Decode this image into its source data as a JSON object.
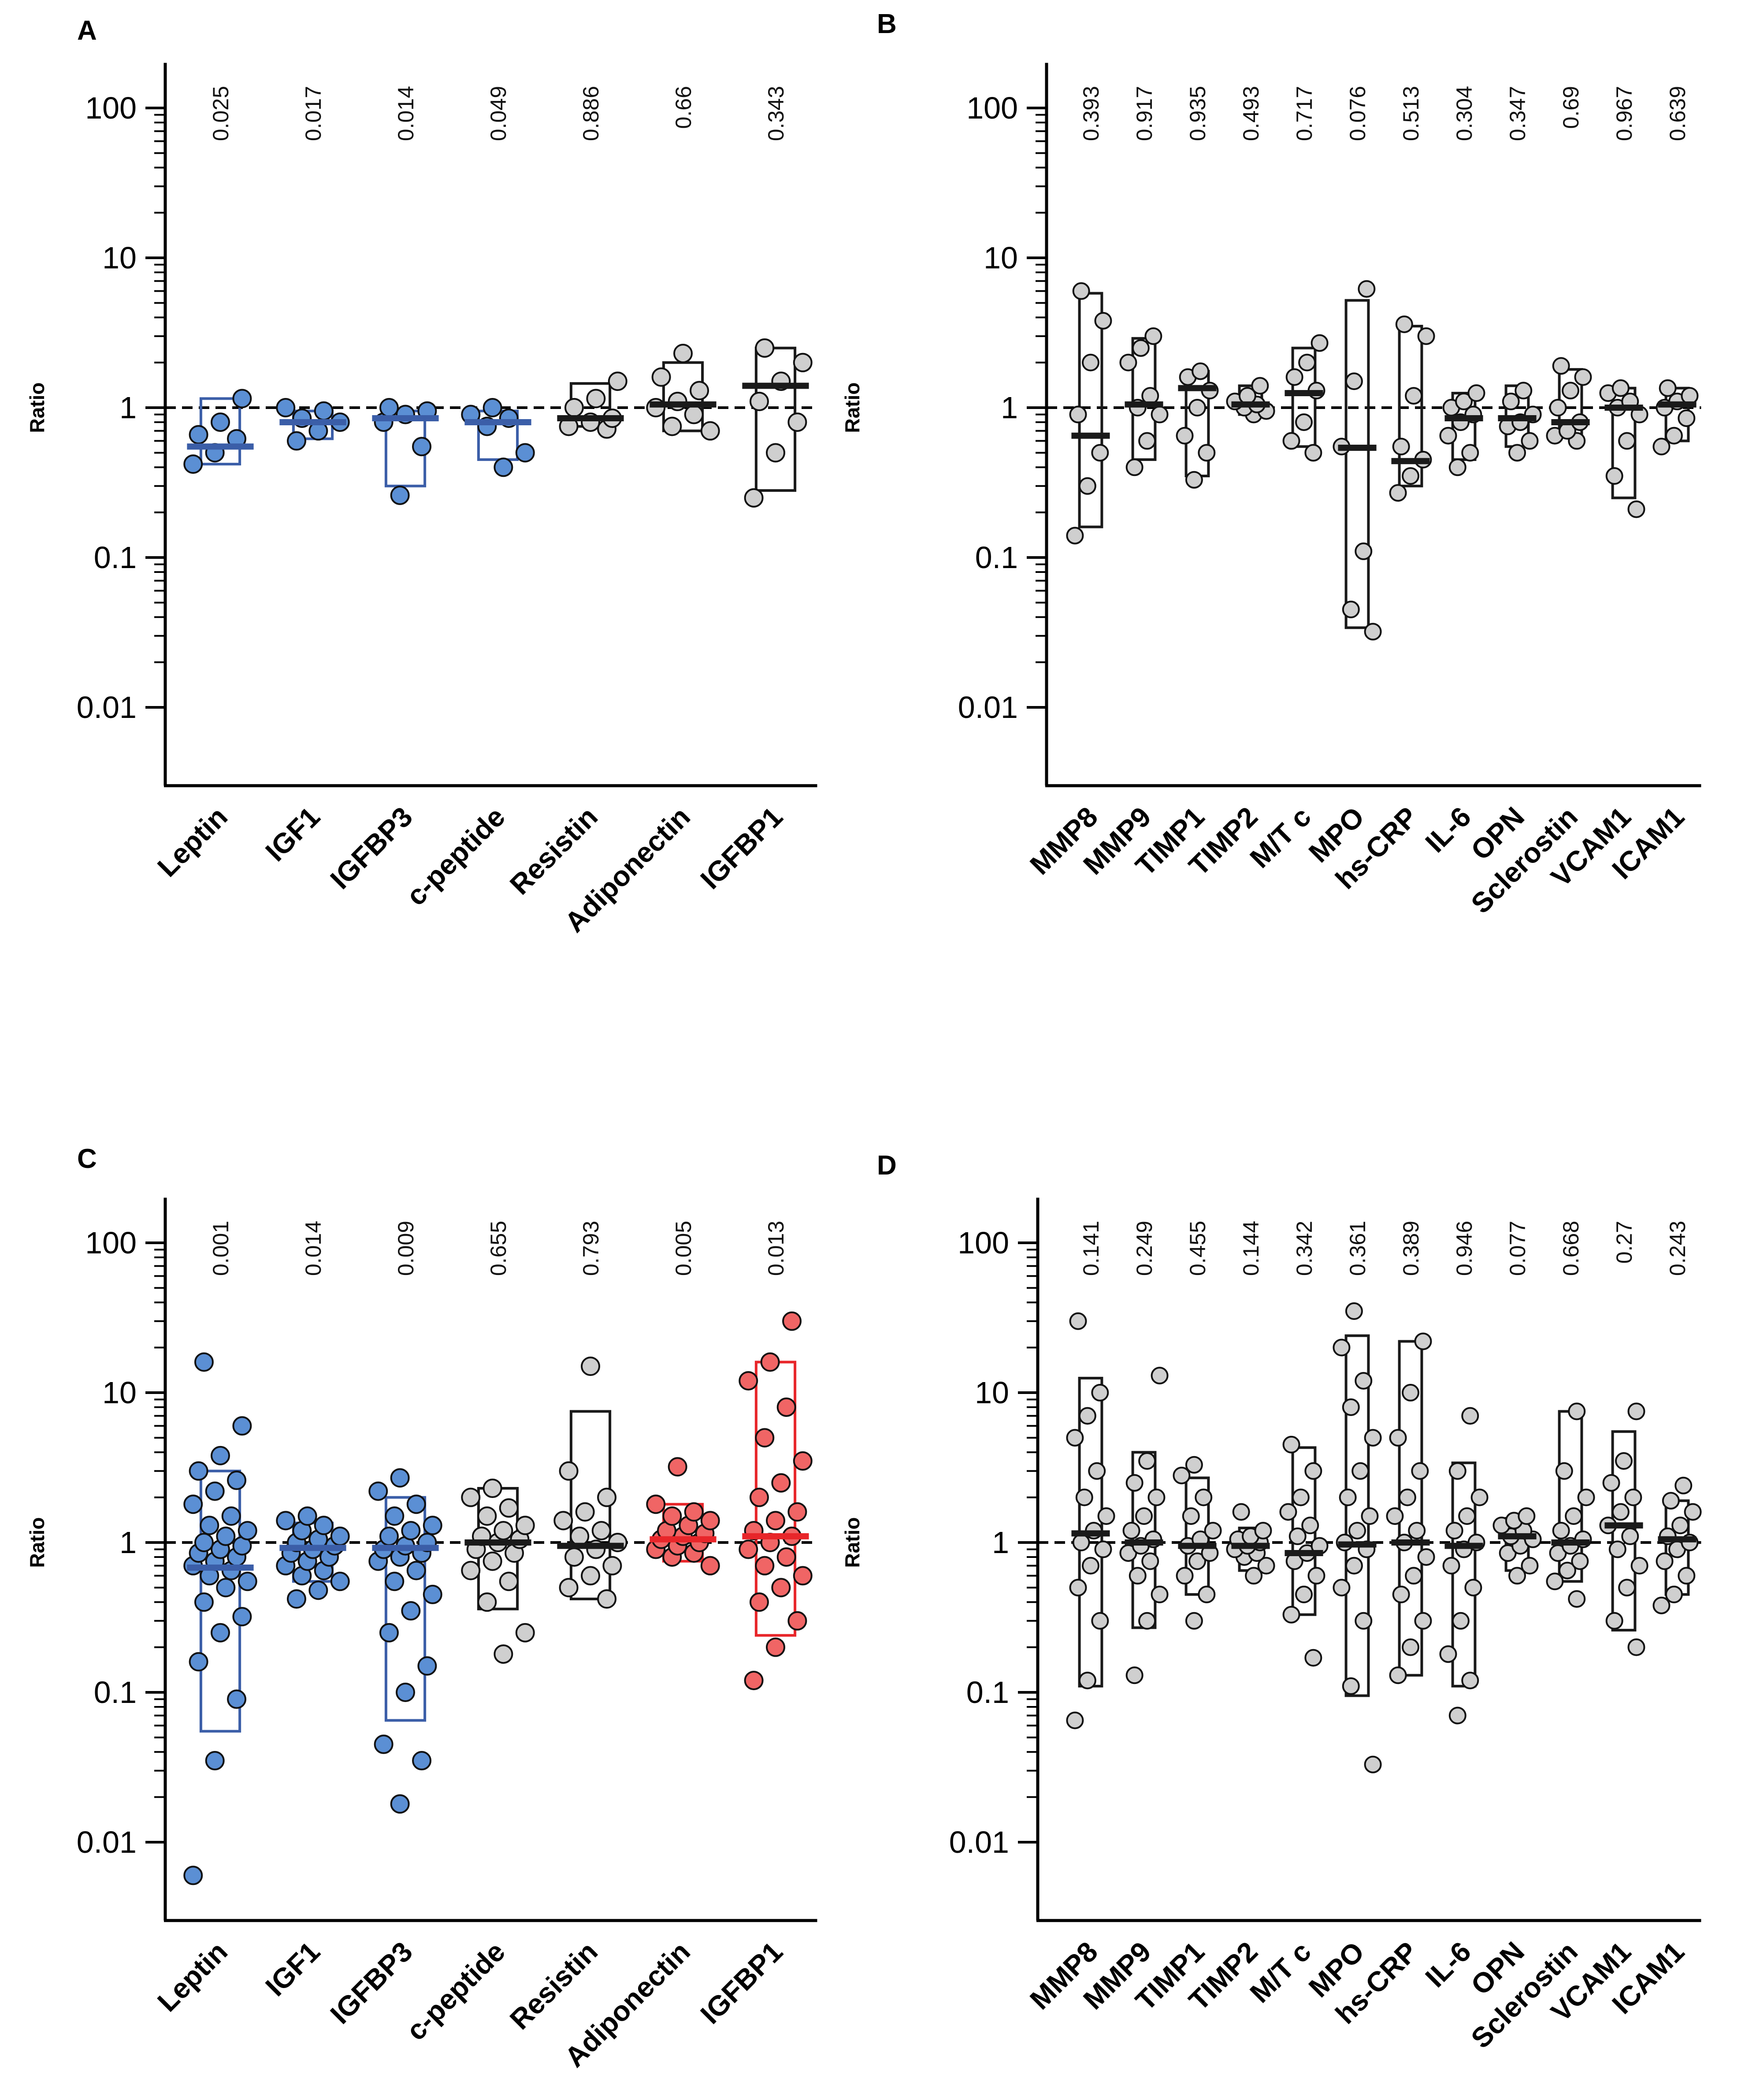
{
  "figure": {
    "reference_line": 1
  },
  "colors": {
    "blue": "#3b5ea8",
    "blue_fill": "#5b8fd4",
    "red": "#e8262a",
    "red_fill": "#f06565",
    "black": "#1a1a1a",
    "grey_fill": "#cfcfcf"
  },
  "chart_data": [
    {
      "panel": "A",
      "type": "scatter",
      "ylabel": "Ratio",
      "yscale": "log",
      "ylim": [
        0.003,
        200
      ],
      "yticks": [
        {
          "v": 100,
          "label": "100"
        },
        {
          "v": 10,
          "label": "10"
        },
        {
          "v": 1,
          "label": "1"
        },
        {
          "v": 0.1,
          "label": "0.1"
        },
        {
          "v": 0.01,
          "label": "0.01"
        }
      ],
      "categories": [
        {
          "name": "Leptin",
          "p": "0.025",
          "color": "blue",
          "box": [
            0.42,
            1.15
          ],
          "median": 0.55,
          "points": [
            0.42,
            0.5,
            0.62,
            0.66,
            0.8,
            1.15
          ]
        },
        {
          "name": "IGF1",
          "p": "0.017",
          "color": "blue",
          "box": [
            0.62,
            0.95
          ],
          "median": 0.8,
          "points": [
            0.6,
            0.7,
            0.8,
            0.85,
            0.95,
            1.0
          ]
        },
        {
          "name": "IGFBP3",
          "p": "0.014",
          "color": "blue",
          "box": [
            0.3,
            0.95
          ],
          "median": 0.85,
          "points": [
            0.26,
            0.55,
            0.8,
            0.9,
            0.95,
            1.0
          ]
        },
        {
          "name": "c-peptide",
          "p": "0.049",
          "color": "blue",
          "box": [
            0.45,
            0.95
          ],
          "median": 0.8,
          "points": [
            0.4,
            0.5,
            0.75,
            0.85,
            0.9,
            1.0
          ]
        },
        {
          "name": "Resistin",
          "p": "0.886",
          "color": "black",
          "box": [
            0.75,
            1.45
          ],
          "median": 0.85,
          "points": [
            0.72,
            0.75,
            0.8,
            0.85,
            1.0,
            1.15,
            1.5
          ]
        },
        {
          "name": "Adiponectin",
          "p": "0.66",
          "color": "black",
          "box": [
            0.7,
            2.0
          ],
          "median": 1.05,
          "points": [
            0.7,
            0.75,
            0.9,
            1.0,
            1.1,
            1.3,
            1.6,
            2.3
          ]
        },
        {
          "name": "IGFBP1",
          "p": "0.343",
          "color": "black",
          "box": [
            0.28,
            2.5
          ],
          "median": 1.4,
          "points": [
            0.25,
            0.5,
            0.8,
            1.1,
            1.5,
            2.0,
            2.5
          ]
        }
      ]
    },
    {
      "panel": "B",
      "type": "scatter",
      "ylabel": "Ratio",
      "yscale": "log",
      "ylim": [
        0.003,
        200
      ],
      "yticks": [
        {
          "v": 100,
          "label": "100"
        },
        {
          "v": 10,
          "label": "10"
        },
        {
          "v": 1,
          "label": "1"
        },
        {
          "v": 0.1,
          "label": "0.1"
        },
        {
          "v": 0.01,
          "label": "0.01"
        }
      ],
      "categories": [
        {
          "name": "MMP8",
          "p": "0.393",
          "color": "black",
          "box": [
            0.16,
            5.8
          ],
          "median": 0.65,
          "points": [
            0.14,
            0.3,
            0.5,
            0.9,
            2.0,
            3.8,
            6.0
          ]
        },
        {
          "name": "MMP9",
          "p": "0.917",
          "color": "black",
          "box": [
            0.45,
            2.9
          ],
          "median": 1.05,
          "points": [
            0.4,
            0.6,
            0.9,
            1.0,
            1.2,
            2.0,
            2.5,
            3.0
          ]
        },
        {
          "name": "TIMP1",
          "p": "0.935",
          "color": "black",
          "box": [
            0.35,
            1.75
          ],
          "median": 1.35,
          "points": [
            0.33,
            0.5,
            0.65,
            1.0,
            1.3,
            1.6,
            1.75
          ]
        },
        {
          "name": "TIMP2",
          "p": "0.493",
          "color": "black",
          "box": [
            0.9,
            1.4
          ],
          "median": 1.05,
          "points": [
            0.9,
            0.95,
            1.0,
            1.05,
            1.1,
            1.2,
            1.4
          ]
        },
        {
          "name": "M/T c",
          "p": "0.717",
          "color": "black",
          "box": [
            0.55,
            2.5
          ],
          "median": 1.25,
          "points": [
            0.5,
            0.6,
            0.8,
            1.3,
            1.6,
            2.0,
            2.7
          ]
        },
        {
          "name": "MPO",
          "p": "0.076",
          "color": "black",
          "box": [
            0.034,
            5.2
          ],
          "median": 0.54,
          "points": [
            0.032,
            0.045,
            0.11,
            0.55,
            1.5,
            6.2
          ]
        },
        {
          "name": "hs-CRP",
          "p": "0.513",
          "color": "black",
          "box": [
            0.3,
            3.5
          ],
          "median": 0.44,
          "points": [
            0.27,
            0.35,
            0.45,
            0.55,
            1.2,
            3.0,
            3.6
          ]
        },
        {
          "name": "IL-6",
          "p": "0.304",
          "color": "black",
          "box": [
            0.45,
            1.25
          ],
          "median": 0.85,
          "points": [
            0.4,
            0.5,
            0.65,
            0.8,
            0.9,
            1.0,
            1.1,
            1.25
          ]
        },
        {
          "name": "OPN",
          "p": "0.347",
          "color": "black",
          "box": [
            0.55,
            1.4
          ],
          "median": 0.85,
          "points": [
            0.5,
            0.6,
            0.75,
            0.8,
            0.9,
            1.1,
            1.3
          ]
        },
        {
          "name": "Sclerostin",
          "p": "0.69",
          "color": "black",
          "box": [
            0.65,
            1.8
          ],
          "median": 0.8,
          "points": [
            0.6,
            0.65,
            0.7,
            0.8,
            1.0,
            1.3,
            1.6,
            1.9
          ]
        },
        {
          "name": "VCAM1",
          "p": "0.967",
          "color": "black",
          "box": [
            0.25,
            1.35
          ],
          "median": 1.0,
          "points": [
            0.21,
            0.35,
            0.6,
            0.9,
            1.0,
            1.1,
            1.25,
            1.35
          ]
        },
        {
          "name": "ICAM1",
          "p": "0.639",
          "color": "black",
          "box": [
            0.6,
            1.35
          ],
          "median": 1.05,
          "points": [
            0.55,
            0.65,
            0.85,
            1.0,
            1.1,
            1.2,
            1.35
          ]
        }
      ]
    },
    {
      "panel": "C",
      "type": "scatter",
      "ylabel": "Ratio",
      "yscale": "log",
      "ylim": [
        0.003,
        200
      ],
      "yticks": [
        {
          "v": 100,
          "label": "100"
        },
        {
          "v": 10,
          "label": "10"
        },
        {
          "v": 1,
          "label": "1"
        },
        {
          "v": 0.1,
          "label": "0.1"
        },
        {
          "v": 0.01,
          "label": "0.01"
        }
      ],
      "categories": [
        {
          "name": "Leptin",
          "p": "0.001",
          "color": "blue",
          "box": [
            0.055,
            3.0
          ],
          "median": 0.68,
          "points": [
            0.006,
            0.035,
            0.09,
            0.16,
            0.25,
            0.32,
            0.4,
            0.5,
            0.55,
            0.6,
            0.65,
            0.7,
            0.75,
            0.8,
            0.85,
            0.9,
            0.95,
            1.0,
            1.1,
            1.2,
            1.3,
            1.5,
            1.8,
            2.2,
            2.6,
            3.0,
            3.8,
            6.0,
            16.0
          ]
        },
        {
          "name": "IGF1",
          "p": "0.014",
          "color": "blue",
          "box": [
            0.55,
            1.35
          ],
          "median": 0.92,
          "points": [
            0.42,
            0.48,
            0.55,
            0.6,
            0.65,
            0.7,
            0.75,
            0.8,
            0.85,
            0.9,
            0.95,
            1.0,
            1.05,
            1.1,
            1.2,
            1.3,
            1.4,
            1.5
          ]
        },
        {
          "name": "IGFBP3",
          "p": "0.009",
          "color": "blue",
          "box": [
            0.065,
            2.0
          ],
          "median": 0.92,
          "points": [
            0.018,
            0.035,
            0.045,
            0.1,
            0.15,
            0.25,
            0.35,
            0.45,
            0.55,
            0.65,
            0.75,
            0.8,
            0.85,
            0.9,
            0.95,
            1.0,
            1.1,
            1.2,
            1.3,
            1.5,
            1.8,
            2.2,
            2.7
          ]
        },
        {
          "name": "c-peptide",
          "p": "0.655",
          "color": "black",
          "box": [
            0.36,
            2.3
          ],
          "median": 1.0,
          "points": [
            0.18,
            0.25,
            0.4,
            0.55,
            0.65,
            0.75,
            0.85,
            0.9,
            1.0,
            1.05,
            1.1,
            1.2,
            1.3,
            1.5,
            1.7,
            2.0,
            2.3
          ]
        },
        {
          "name": "Resistin",
          "p": "0.793",
          "color": "black",
          "box": [
            0.42,
            7.5
          ],
          "median": 0.95,
          "points": [
            0.42,
            0.5,
            0.6,
            0.7,
            0.8,
            0.9,
            1.0,
            1.1,
            1.2,
            1.4,
            1.6,
            2.0,
            3.0,
            15.0
          ]
        },
        {
          "name": "Adiponectin",
          "p": "0.005",
          "color": "red",
          "box": [
            0.75,
            1.8
          ],
          "median": 1.05,
          "points": [
            0.7,
            0.8,
            0.85,
            0.9,
            0.95,
            1.0,
            1.05,
            1.1,
            1.15,
            1.2,
            1.3,
            1.4,
            1.5,
            1.6,
            1.8,
            3.2
          ]
        },
        {
          "name": "IGFBP1",
          "p": "0.013",
          "color": "red",
          "box": [
            0.24,
            16.0
          ],
          "median": 1.1,
          "points": [
            0.12,
            0.2,
            0.3,
            0.4,
            0.5,
            0.6,
            0.7,
            0.8,
            0.9,
            1.0,
            1.1,
            1.2,
            1.4,
            1.6,
            2.0,
            2.5,
            3.5,
            5.0,
            8.0,
            12.0,
            16.0,
            30.0
          ]
        }
      ]
    },
    {
      "panel": "D",
      "type": "scatter",
      "ylabel": "Ratio",
      "yscale": "log",
      "ylim": [
        0.003,
        200
      ],
      "yticks": [
        {
          "v": 100,
          "label": "100"
        },
        {
          "v": 10,
          "label": "10"
        },
        {
          "v": 1,
          "label": "1"
        },
        {
          "v": 0.1,
          "label": "0.1"
        },
        {
          "v": 0.01,
          "label": "0.01"
        }
      ],
      "categories": [
        {
          "name": "MMP8",
          "p": "0.141",
          "color": "black",
          "box": [
            0.11,
            12.5
          ],
          "median": 1.15,
          "points": [
            0.065,
            0.12,
            0.3,
            0.5,
            0.7,
            0.9,
            1.0,
            1.2,
            1.5,
            2.0,
            3.0,
            5.0,
            7.0,
            10.0,
            30.0
          ]
        },
        {
          "name": "MMP9",
          "p": "0.249",
          "color": "black",
          "box": [
            0.27,
            4.0
          ],
          "median": 1.0,
          "points": [
            0.13,
            0.3,
            0.45,
            0.6,
            0.75,
            0.85,
            0.95,
            1.05,
            1.2,
            1.5,
            2.0,
            2.5,
            3.5,
            13.0
          ]
        },
        {
          "name": "TIMP1",
          "p": "0.455",
          "color": "black",
          "box": [
            0.45,
            2.7
          ],
          "median": 0.95,
          "points": [
            0.3,
            0.45,
            0.6,
            0.75,
            0.85,
            0.95,
            1.05,
            1.2,
            1.5,
            2.0,
            2.8,
            3.3
          ]
        },
        {
          "name": "TIMP2",
          "p": "0.144",
          "color": "black",
          "box": [
            0.65,
            1.25
          ],
          "median": 0.95,
          "points": [
            0.6,
            0.7,
            0.8,
            0.85,
            0.9,
            0.95,
            1.0,
            1.05,
            1.1,
            1.2,
            1.6
          ]
        },
        {
          "name": "M/T c",
          "p": "0.342",
          "color": "black",
          "box": [
            0.33,
            4.3
          ],
          "median": 0.85,
          "points": [
            0.17,
            0.33,
            0.45,
            0.6,
            0.75,
            0.85,
            0.95,
            1.1,
            1.3,
            1.6,
            2.0,
            3.0,
            4.5
          ]
        },
        {
          "name": "MPO",
          "p": "0.361",
          "color": "black",
          "box": [
            0.095,
            24.0
          ],
          "median": 0.97,
          "points": [
            0.033,
            0.11,
            0.3,
            0.5,
            0.7,
            0.9,
            1.0,
            1.2,
            1.5,
            2.0,
            3.0,
            5.0,
            8.0,
            12.0,
            20.0,
            35.0
          ]
        },
        {
          "name": "hs-CRP",
          "p": "0.389",
          "color": "black",
          "box": [
            0.13,
            22.0
          ],
          "median": 1.0,
          "points": [
            0.13,
            0.2,
            0.3,
            0.45,
            0.6,
            0.8,
            1.0,
            1.2,
            1.5,
            2.0,
            3.0,
            5.0,
            10.0,
            22.0
          ]
        },
        {
          "name": "IL-6",
          "p": "0.946",
          "color": "black",
          "box": [
            0.11,
            3.4
          ],
          "median": 0.95,
          "points": [
            0.07,
            0.12,
            0.18,
            0.3,
            0.5,
            0.7,
            0.9,
            1.0,
            1.2,
            1.5,
            2.0,
            3.0,
            7.0
          ]
        },
        {
          "name": "OPN",
          "p": "0.077",
          "color": "black",
          "box": [
            0.65,
            1.45
          ],
          "median": 1.1,
          "points": [
            0.6,
            0.7,
            0.85,
            0.95,
            1.05,
            1.1,
            1.2,
            1.3,
            1.4,
            1.5
          ]
        },
        {
          "name": "Sclerostin",
          "p": "0.668",
          "color": "black",
          "box": [
            0.55,
            7.5
          ],
          "median": 1.0,
          "points": [
            0.42,
            0.55,
            0.65,
            0.75,
            0.85,
            0.95,
            1.05,
            1.2,
            1.5,
            2.0,
            3.0,
            7.5
          ]
        },
        {
          "name": "VCAM1",
          "p": "0.27",
          "color": "black",
          "box": [
            0.26,
            5.5
          ],
          "median": 1.3,
          "points": [
            0.2,
            0.3,
            0.5,
            0.7,
            0.9,
            1.1,
            1.3,
            1.6,
            2.0,
            2.5,
            3.5,
            7.5
          ]
        },
        {
          "name": "ICAM1",
          "p": "0.243",
          "color": "black",
          "box": [
            0.45,
            1.9
          ],
          "median": 1.05,
          "points": [
            0.38,
            0.45,
            0.6,
            0.75,
            0.9,
            1.0,
            1.1,
            1.3,
            1.6,
            1.9,
            2.4
          ]
        }
      ]
    }
  ]
}
